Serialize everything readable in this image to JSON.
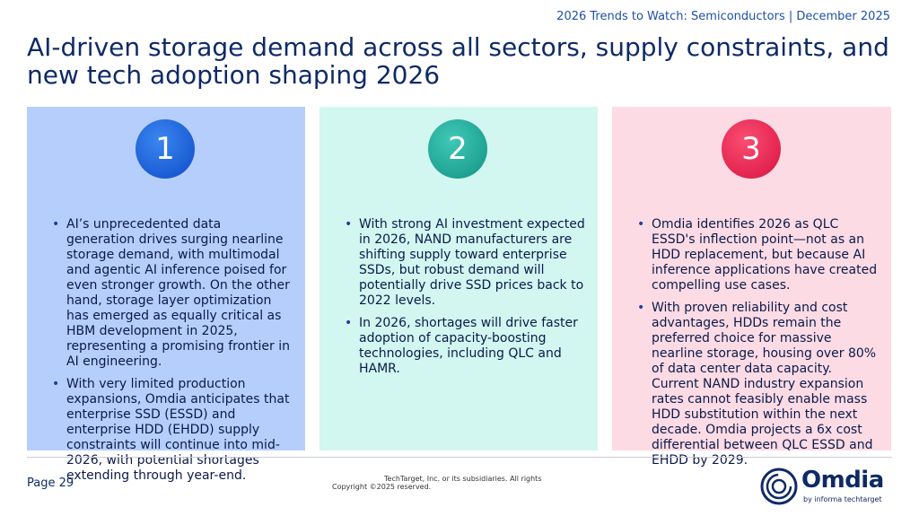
{
  "header": {
    "note": "2026 Trends to Watch: Semiconductors | December 2025"
  },
  "title": "AI-driven storage demand across all sectors, supply constraints, and new tech adoption shaping 2026",
  "panels": [
    {
      "number": "1",
      "color": "#b6cefb",
      "bullets": [
        "AI’s unprecedented data generation drives surging nearline storage demand, with multimodal and agentic AI inference poised for even stronger growth. On the other hand, storage layer optimization has emerged as equally critical as HBM development in 2025, representing a promising frontier in AI engineering.",
        "With very limited production expansions, Omdia anticipates that enterprise SSD (ESSD) and enterprise HDD (EHDD) supply constraints will continue into mid-2026, with potential shortages extending through year-end."
      ]
    },
    {
      "number": "2",
      "color": "#d2f6f0",
      "bullets": [
        "With strong AI investment expected in 2026, NAND manufacturers are shifting supply toward enterprise SSDs, but robust demand will potentially drive SSD prices back to 2022 levels.",
        "In 2026, shortages will drive faster adoption of capacity-boosting technologies, including QLC and HAMR."
      ]
    },
    {
      "number": "3",
      "color": "#fddbe4",
      "bullets": [
        "Omdia identifies 2026 as QLC ESSD's inflection point—not as an HDD replacement, but because AI inference applications have created compelling use cases.",
        "With proven reliability and cost advantages, HDDs remain the preferred choice for massive nearline storage, housing over 80% of data center data capacity. Current NAND industry expansion rates cannot feasibly enable mass HDD substitution within the next decade. Omdia projects a 6x cost differential between QLC ESSD and EHDD by 2029."
      ]
    }
  ],
  "footer": {
    "page": "Page 29",
    "copyright_line1": "TechTarget, Inc. or its subsidiaries. All rights",
    "copyright_line2": "Copyright ©2025 reserved.",
    "logo_word": "Omdia",
    "logo_by": "by informa techtarget"
  }
}
